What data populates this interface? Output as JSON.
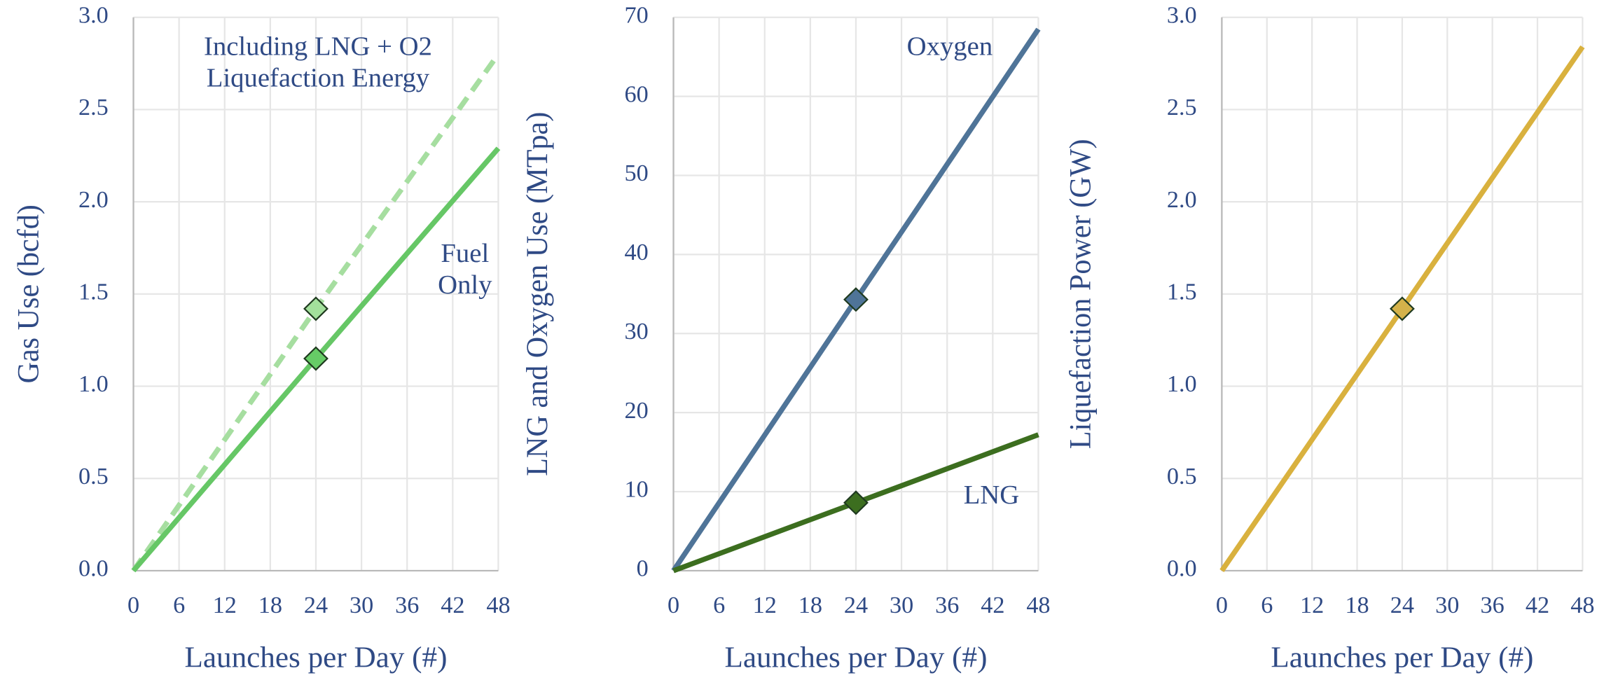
{
  "chart_data": [
    {
      "type": "line",
      "x_label": "Launches per Day (#)",
      "y_label": "Gas Use (bcfd)",
      "xlim": [
        0,
        48
      ],
      "xticks": [
        0,
        6,
        12,
        18,
        24,
        30,
        36,
        42,
        48
      ],
      "ylim": [
        0,
        3
      ],
      "yticks": [
        {
          "value": 0,
          "label": "0.0"
        },
        {
          "value": 0.5,
          "label": "0.5"
        },
        {
          "value": 1,
          "label": "1.0"
        },
        {
          "value": 1.5,
          "label": "1.5"
        },
        {
          "value": 2,
          "label": "2.0"
        },
        {
          "value": 2.5,
          "label": "2.5"
        },
        {
          "value": 3,
          "label": "3.0"
        }
      ],
      "grid": true,
      "x": [
        0,
        24,
        48
      ],
      "series": [
        {
          "name": "Including LNG + O2 Liquefaction Energy",
          "color": "#a6dea0",
          "dashed": true,
          "values": [
            0,
            1.42,
            2.8
          ],
          "marker": {
            "x": 24,
            "y": 1.42,
            "color": "#a3e09c"
          }
        },
        {
          "name": "Fuel Only",
          "color": "#66c766",
          "values": [
            0,
            1.15,
            2.29
          ],
          "marker": {
            "x": 24,
            "y": 1.15,
            "color": "#66cc66"
          }
        }
      ]
    },
    {
      "type": "line",
      "x_label": "Launches per Day (#)",
      "y_label": "LNG and Oxygen Use (MTpa)",
      "xlim": [
        0,
        48
      ],
      "xticks": [
        0,
        6,
        12,
        18,
        24,
        30,
        36,
        42,
        48
      ],
      "ylim": [
        0,
        70
      ],
      "yticks": [
        0,
        10,
        20,
        30,
        40,
        50,
        60,
        70
      ],
      "grid": true,
      "x": [
        0,
        24,
        48
      ],
      "series": [
        {
          "name": "Oxygen",
          "color": "#4f7498",
          "values": [
            0,
            34.3,
            68.5
          ],
          "marker": {
            "x": 24,
            "y": 34.3,
            "color": "#4f7498"
          }
        },
        {
          "name": "LNG",
          "color": "#3c6e1f",
          "values": [
            0,
            8.6,
            17.2
          ],
          "marker": {
            "x": 24,
            "y": 8.6,
            "color": "#3c6e1f"
          }
        }
      ]
    },
    {
      "type": "line",
      "x_label": "Launches per Day (#)",
      "y_label": "Liquefaction Power (GW)",
      "xlim": [
        0,
        48
      ],
      "xticks": [
        0,
        6,
        12,
        18,
        24,
        30,
        36,
        42,
        48
      ],
      "ylim": [
        0,
        3
      ],
      "yticks": [
        {
          "value": 0,
          "label": "0.0"
        },
        {
          "value": 0.5,
          "label": "0.5"
        },
        {
          "value": 1,
          "label": "1.0"
        },
        {
          "value": 1.5,
          "label": "1.5"
        },
        {
          "value": 2,
          "label": "2.0"
        },
        {
          "value": 2.5,
          "label": "2.5"
        },
        {
          "value": 3,
          "label": "3.0"
        }
      ],
      "grid": true,
      "x": [
        0,
        24,
        48
      ],
      "series": [
        {
          "color": "#d9b13e",
          "values": [
            0,
            1.42,
            2.84
          ],
          "marker": {
            "x": 24,
            "y": 1.42,
            "color": "#d4b24a"
          }
        }
      ]
    }
  ]
}
